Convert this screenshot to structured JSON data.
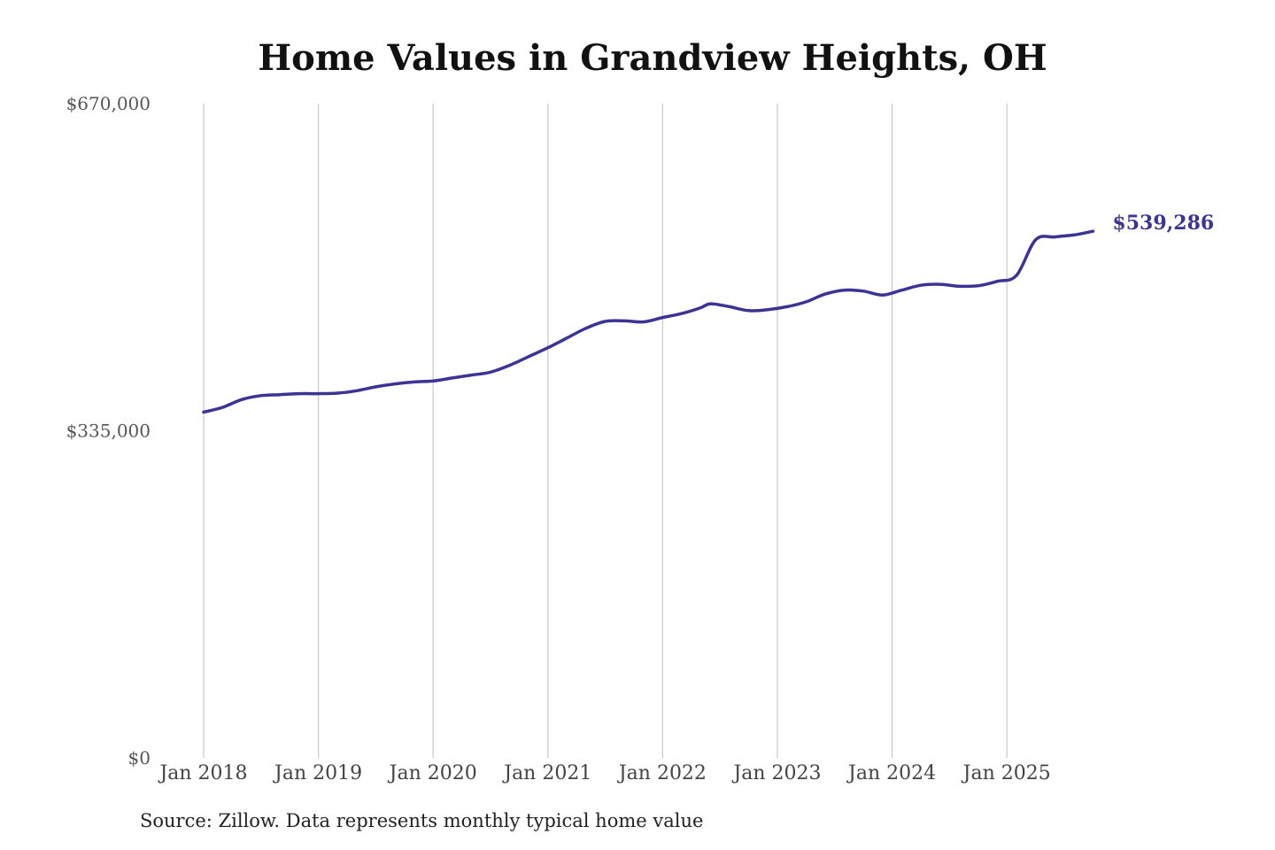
{
  "chart_data": {
    "type": "line",
    "title": "Home Values in Grandview Heights, OH",
    "xlabel": "",
    "ylabel": "",
    "ylim": [
      0,
      670000
    ],
    "y_ticks": [
      {
        "value": 0,
        "label": "$0"
      },
      {
        "value": 335000,
        "label": "$335,000"
      },
      {
        "value": 670000,
        "label": "$670,000"
      }
    ],
    "x_ticks": [
      {
        "value": "2018-01",
        "label": "Jan 2018"
      },
      {
        "value": "2019-01",
        "label": "Jan 2019"
      },
      {
        "value": "2020-01",
        "label": "Jan 2020"
      },
      {
        "value": "2021-01",
        "label": "Jan 2021"
      },
      {
        "value": "2022-01",
        "label": "Jan 2022"
      },
      {
        "value": "2023-01",
        "label": "Jan 2023"
      },
      {
        "value": "2024-01",
        "label": "Jan 2024"
      },
      {
        "value": "2025-01",
        "label": "Jan 2025"
      }
    ],
    "x_range": [
      "2018-01",
      "2025-12"
    ],
    "grid": "vertical",
    "series": [
      {
        "color": "#3b3494",
        "end_label": "$539,286",
        "x": [
          "2018-01",
          "2018-03",
          "2018-05",
          "2018-07",
          "2018-09",
          "2018-11",
          "2019-01",
          "2019-03",
          "2019-05",
          "2019-07",
          "2019-09",
          "2019-11",
          "2020-01",
          "2020-03",
          "2020-05",
          "2020-07",
          "2020-09",
          "2020-11",
          "2021-01",
          "2021-03",
          "2021-05",
          "2021-07",
          "2021-09",
          "2021-11",
          "2022-01",
          "2022-03",
          "2022-05",
          "2022-06",
          "2022-08",
          "2022-10",
          "2022-12",
          "2023-02",
          "2023-04",
          "2023-06",
          "2023-08",
          "2023-10",
          "2023-12",
          "2024-02",
          "2024-04",
          "2024-06",
          "2024-08",
          "2024-10",
          "2024-12",
          "2025-02",
          "2025-04",
          "2025-06",
          "2025-08",
          "2025-10"
        ],
        "values": [
          354000,
          359000,
          367000,
          371000,
          372000,
          373000,
          373000,
          373500,
          376000,
          380000,
          383000,
          385000,
          386000,
          389000,
          392000,
          395000,
          402000,
          411000,
          420000,
          430000,
          440000,
          447000,
          447500,
          446500,
          451000,
          455000,
          461000,
          465000,
          462000,
          458000,
          459000,
          462000,
          467000,
          475000,
          479000,
          478000,
          474000,
          479000,
          484000,
          485000,
          483000,
          483500,
          488000,
          494000,
          530500,
          533500,
          535500,
          539286
        ]
      }
    ]
  },
  "source_note": "Source: Zillow. Data represents monthly typical home value"
}
